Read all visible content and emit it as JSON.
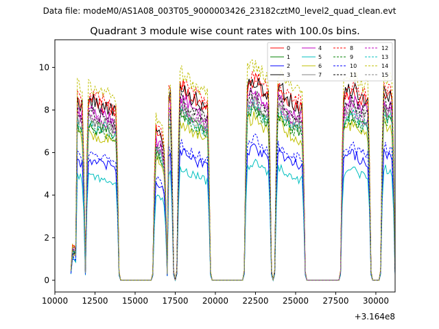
{
  "suptitle": "Data file: modeM0/AS1A08_003T05_9000003426_23182cztM0_level2_quad_clean.evt",
  "chart_data": {
    "type": "line",
    "title": "Quadrant 3 module wise count rates with 100.0s bins.",
    "xlabel": "",
    "ylabel": "",
    "x_offset_label": "+3.164e8",
    "xlim": [
      10000,
      31200
    ],
    "ylim": [
      -0.55,
      11.3
    ],
    "xticks": [
      10000,
      12500,
      15000,
      17500,
      20000,
      22500,
      25000,
      27500,
      30000
    ],
    "xtick_labels": [
      "10000",
      "12500",
      "15000",
      "17500",
      "20000",
      "22500",
      "25000",
      "27500",
      "30000"
    ],
    "yticks": [
      0,
      2,
      4,
      6,
      8,
      10
    ],
    "ytick_labels": [
      "0",
      "2",
      "4",
      "6",
      "8",
      "10"
    ],
    "legend_position": "upper right",
    "legend_columns": 4,
    "segments": [
      {
        "start": 11000,
        "end": 11900,
        "dip_at": 11200,
        "dip_depth": 0.15,
        "shape": [
          1.15,
          1.08,
          1.0,
          0.97,
          0.95,
          0.92
        ],
        "drop": 0.0
      },
      {
        "start": 11900,
        "end": 14000,
        "dip_at": null,
        "shape": [
          1.0,
          0.98,
          0.96,
          0.95,
          0.93,
          0.9
        ],
        "drop": 0.0
      },
      {
        "start": 16100,
        "end": 17000,
        "dip_at": null,
        "shape": [
          0.75,
          0.82,
          0.8,
          0.78,
          0.7,
          0.75
        ],
        "drop": 0.0
      },
      {
        "start": 16900,
        "end": 17400,
        "dip_at": null,
        "shape": [
          1.0,
          1.02,
          1.0,
          0.98
        ],
        "drop": 0.0
      },
      {
        "start": 17600,
        "end": 19700,
        "dip_at": null,
        "shape": [
          1.08,
          1.05,
          1.0,
          0.98,
          0.95,
          0.92
        ],
        "drop": 0.0
      },
      {
        "start": 21800,
        "end": 23500,
        "dip_at": null,
        "shape": [
          1.05,
          1.08,
          1.1,
          1.05,
          1.02,
          1.0
        ],
        "drop": 0.0
      },
      {
        "start": 23700,
        "end": 25600,
        "dip_at": null,
        "shape": [
          1.08,
          1.05,
          1.0,
          0.97,
          0.95,
          0.93
        ],
        "drop": 0.0
      },
      {
        "start": 27800,
        "end": 29700,
        "dip_at": null,
        "shape": [
          0.98,
          1.02,
          1.05,
          1.0,
          0.98,
          0.96
        ],
        "drop": 0.0
      },
      {
        "start": 30300,
        "end": 31200,
        "dip_at": null,
        "shape": [
          1.1,
          1.05,
          1.02,
          1.0,
          0.98
        ],
        "drop": 0.0
      }
    ],
    "gaps_zero": [
      [
        14000,
        16100
      ],
      [
        19700,
        21800
      ],
      [
        25600,
        27800
      ],
      [
        29700,
        30300
      ]
    ],
    "series": [
      {
        "name": "0",
        "color": "#ff0000",
        "style": "solid",
        "level": 8.6
      },
      {
        "name": "1",
        "color": "#008000",
        "style": "solid",
        "level": 7.4
      },
      {
        "name": "2",
        "color": "#0000ff",
        "style": "solid",
        "level": 5.7
      },
      {
        "name": "3",
        "color": "#000000",
        "style": "solid",
        "level": 8.6
      },
      {
        "name": "4",
        "color": "#bf00bf",
        "style": "solid",
        "level": 8.1
      },
      {
        "name": "5",
        "color": "#00bfbf",
        "style": "solid",
        "level": 5.0
      },
      {
        "name": "6",
        "color": "#bfbf00",
        "style": "solid",
        "level": 7.0
      },
      {
        "name": "7",
        "color": "#808080",
        "style": "solid",
        "level": 7.7
      },
      {
        "name": "8",
        "color": "#ff0000",
        "style": "dashed",
        "level": 8.8
      },
      {
        "name": "9",
        "color": "#008000",
        "style": "dashed",
        "level": 7.3
      },
      {
        "name": "10",
        "color": "#0000ff",
        "style": "dashed",
        "level": 6.0
      },
      {
        "name": "11",
        "color": "#000000",
        "style": "dashed",
        "level": 8.0
      },
      {
        "name": "12",
        "color": "#bf00bf",
        "style": "dashed",
        "level": 7.8
      },
      {
        "name": "13",
        "color": "#00bfbf",
        "style": "dashed",
        "level": 7.5
      },
      {
        "name": "14",
        "color": "#bfbf00",
        "style": "dashed",
        "level": 9.3
      },
      {
        "name": "15",
        "color": "#808080",
        "style": "dashed",
        "level": 7.6
      }
    ]
  }
}
